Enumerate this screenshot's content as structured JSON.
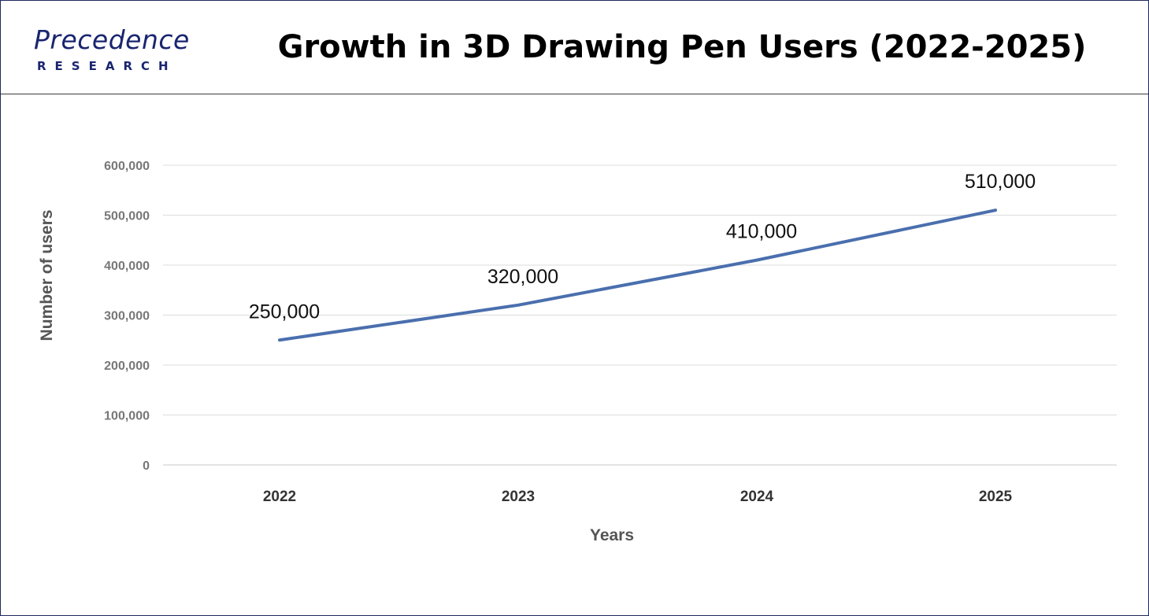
{
  "brand": {
    "logo_top": "Precedence",
    "logo_bottom": "RESEARCH",
    "logo_color": "#1a2570",
    "accent_color": "#2f6fe0"
  },
  "header": {
    "title": "Growth in 3D Drawing Pen Users (2022-2025)"
  },
  "chart_data": {
    "type": "line",
    "title": "Growth in 3D Drawing Pen Users (2022-2025)",
    "xlabel": "Years",
    "ylabel": "Number of users",
    "categories": [
      "2022",
      "2023",
      "2024",
      "2025"
    ],
    "series": [
      {
        "values": [
          250000,
          320000,
          410000,
          510000
        ],
        "color": "#4a6fae"
      }
    ],
    "data_labels": [
      "250,000",
      "320,000",
      "410,000",
      "510,000"
    ],
    "ylim": [
      0,
      600000
    ],
    "yticks": [
      0,
      100000,
      200000,
      300000,
      400000,
      500000,
      600000
    ],
    "ytick_labels": [
      "0",
      "100,000",
      "200,000",
      "300,000",
      "400,000",
      "500,000",
      "600,000"
    ],
    "grid": true,
    "legend": "none"
  }
}
